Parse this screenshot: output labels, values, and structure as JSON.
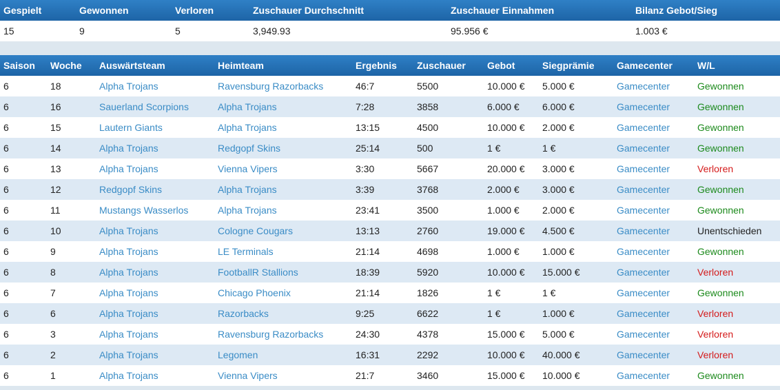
{
  "summary": {
    "headers": [
      "Gespielt",
      "Gewonnen",
      "Verloren",
      "Zuschauer Durchschnitt",
      "Zuschauer Einnahmen",
      "Bilanz Gebot/Sieg"
    ],
    "values": [
      "15",
      "9",
      "5",
      "3,949.93",
      "95.956 €",
      "1.003 €"
    ]
  },
  "games": {
    "headers": [
      "Saison",
      "Woche",
      "Auswärtsteam",
      "Heimteam",
      "Ergebnis",
      "Zuschauer",
      "Gebot",
      "Siegprämie",
      "Gamecenter",
      "W/L"
    ],
    "rows": [
      {
        "saison": "6",
        "woche": "18",
        "away": "Alpha Trojans",
        "home": "Ravensburg Razorbacks",
        "score": "46:7",
        "viewers": "5500",
        "bid": "10.000 €",
        "bonus": "5.000 €",
        "gc": "Gamecenter",
        "wl": "Gewonnen",
        "result": "win"
      },
      {
        "saison": "6",
        "woche": "16",
        "away": "Sauerland Scorpions",
        "home": "Alpha Trojans",
        "score": "7:28",
        "viewers": "3858",
        "bid": "6.000 €",
        "bonus": "6.000 €",
        "gc": "Gamecenter",
        "wl": "Gewonnen",
        "result": "win"
      },
      {
        "saison": "6",
        "woche": "15",
        "away": "Lautern Giants",
        "home": "Alpha Trojans",
        "score": "13:15",
        "viewers": "4500",
        "bid": "10.000 €",
        "bonus": "2.000 €",
        "gc": "Gamecenter",
        "wl": "Gewonnen",
        "result": "win"
      },
      {
        "saison": "6",
        "woche": "14",
        "away": "Alpha Trojans",
        "home": "Redgopf Skins",
        "score": "25:14",
        "viewers": "500",
        "bid": "1 €",
        "bonus": "1 €",
        "gc": "Gamecenter",
        "wl": "Gewonnen",
        "result": "win"
      },
      {
        "saison": "6",
        "woche": "13",
        "away": "Alpha Trojans",
        "home": "Vienna Vipers",
        "score": "3:30",
        "viewers": "5667",
        "bid": "20.000 €",
        "bonus": "3.000 €",
        "gc": "Gamecenter",
        "wl": "Verloren",
        "result": "loss"
      },
      {
        "saison": "6",
        "woche": "12",
        "away": "Redgopf Skins",
        "home": "Alpha Trojans",
        "score": "3:39",
        "viewers": "3768",
        "bid": "2.000 €",
        "bonus": "3.000 €",
        "gc": "Gamecenter",
        "wl": "Gewonnen",
        "result": "win"
      },
      {
        "saison": "6",
        "woche": "11",
        "away": "Mustangs Wasserlos",
        "home": "Alpha Trojans",
        "score": "23:41",
        "viewers": "3500",
        "bid": "1.000 €",
        "bonus": "2.000 €",
        "gc": "Gamecenter",
        "wl": "Gewonnen",
        "result": "win"
      },
      {
        "saison": "6",
        "woche": "10",
        "away": "Alpha Trojans",
        "home": "Cologne Cougars",
        "score": "13:13",
        "viewers": "2760",
        "bid": "19.000 €",
        "bonus": "4.500 €",
        "gc": "Gamecenter",
        "wl": "Unentschieden",
        "result": "draw"
      },
      {
        "saison": "6",
        "woche": "9",
        "away": "Alpha Trojans",
        "home": "LE Terminals",
        "score": "21:14",
        "viewers": "4698",
        "bid": "1.000 €",
        "bonus": "1.000 €",
        "gc": "Gamecenter",
        "wl": "Gewonnen",
        "result": "win"
      },
      {
        "saison": "6",
        "woche": "8",
        "away": "Alpha Trojans",
        "home": "FootballR Stallions",
        "score": "18:39",
        "viewers": "5920",
        "bid": "10.000 €",
        "bonus": "15.000 €",
        "gc": "Gamecenter",
        "wl": "Verloren",
        "result": "loss"
      },
      {
        "saison": "6",
        "woche": "7",
        "away": "Alpha Trojans",
        "home": "Chicago Phoenix",
        "score": "21:14",
        "viewers": "1826",
        "bid": "1 €",
        "bonus": "1 €",
        "gc": "Gamecenter",
        "wl": "Gewonnen",
        "result": "win"
      },
      {
        "saison": "6",
        "woche": "6",
        "away": "Alpha Trojans",
        "home": "Razorbacks",
        "score": "9:25",
        "viewers": "6622",
        "bid": "1 €",
        "bonus": "1.000 €",
        "gc": "Gamecenter",
        "wl": "Verloren",
        "result": "loss"
      },
      {
        "saison": "6",
        "woche": "3",
        "away": "Alpha Trojans",
        "home": "Ravensburg Razorbacks",
        "score": "24:30",
        "viewers": "4378",
        "bid": "15.000 €",
        "bonus": "5.000 €",
        "gc": "Gamecenter",
        "wl": "Verloren",
        "result": "loss"
      },
      {
        "saison": "6",
        "woche": "2",
        "away": "Alpha Trojans",
        "home": "Legomen",
        "score": "16:31",
        "viewers": "2292",
        "bid": "10.000 €",
        "bonus": "40.000 €",
        "gc": "Gamecenter",
        "wl": "Verloren",
        "result": "loss"
      },
      {
        "saison": "6",
        "woche": "1",
        "away": "Alpha Trojans",
        "home": "Vienna Vipers",
        "score": "21:7",
        "viewers": "3460",
        "bid": "15.000 €",
        "bonus": "10.000 €",
        "gc": "Gamecenter",
        "wl": "Gewonnen",
        "result": "win"
      }
    ]
  }
}
